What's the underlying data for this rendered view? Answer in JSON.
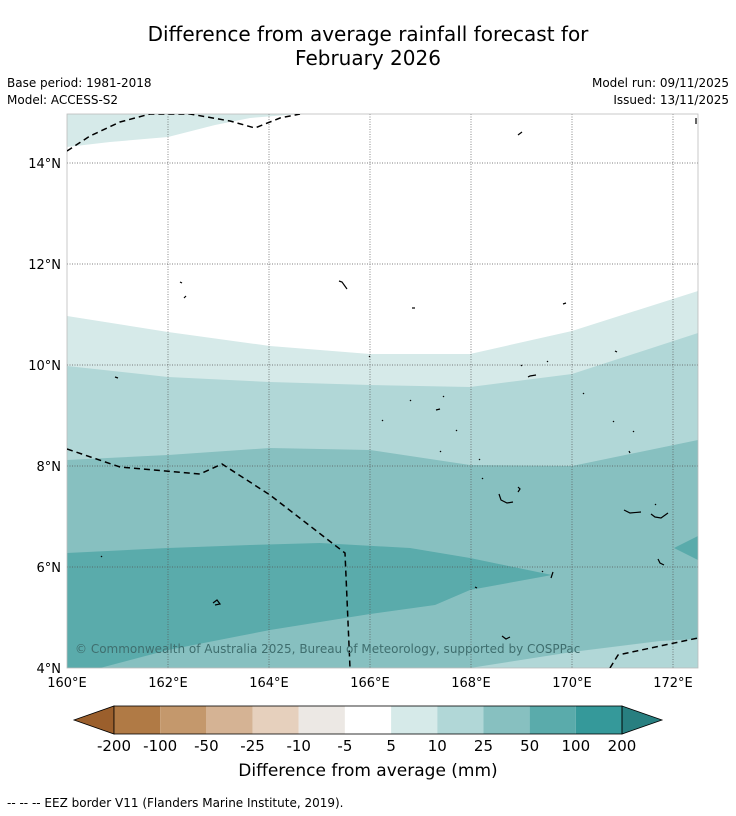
{
  "title": {
    "line1": "Difference from average rainfall forecast for",
    "line2": "February 2026"
  },
  "meta": {
    "base_period": "Base period: 1981-2018",
    "model": "Model: ACCESS-S2",
    "model_run": "Model run: 09/11/2025",
    "issued": "Issued: 13/11/2025"
  },
  "map": {
    "lat_labels": [
      "14°N",
      "12°N",
      "10°N",
      "8°N",
      "6°N",
      "4°N"
    ],
    "lon_labels": [
      "160°E",
      "162°E",
      "164°E",
      "166°E",
      "168°E",
      "170°E",
      "172°E"
    ],
    "copyright": "© Commonwealth of Australia 2025, Bureau of Meteorology, supported by COSPPac"
  },
  "colorbar": {
    "tick_labels": [
      "-200",
      "-100",
      "-50",
      "-25",
      "-10",
      "-5",
      "5",
      "10",
      "25",
      "50",
      "100",
      "200"
    ],
    "colors": [
      "#9b5f2c",
      "#b07a45",
      "#c4986c",
      "#d5b394",
      "#e6d0bd",
      "#ece8e4",
      "#ffffff",
      "#d6eae9",
      "#b1d7d7",
      "#87c0c0",
      "#5aabab",
      "#35999a",
      "#287f80"
    ],
    "label": "Difference from average (mm)"
  },
  "footnote": "--  --  -- EEZ border V11 (Flanders Marine Institute, 2019)."
}
